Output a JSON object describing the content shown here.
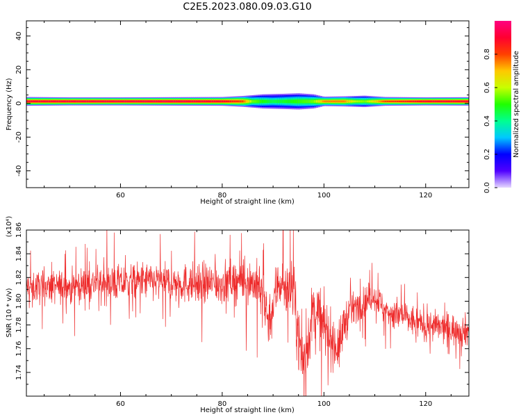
{
  "figure": {
    "title": "C2E5.2023.080.09.03.G10"
  },
  "chart_data": [
    {
      "type": "heatmap",
      "title": "C2E5.2023.080.09.03.G10",
      "xlabel": "Height of straight line (km)",
      "ylabel": "Frequency (Hz)",
      "xlim": [
        41.5,
        128.5
      ],
      "ylim": [
        -50,
        49
      ],
      "xticks": [
        60,
        80,
        100,
        120
      ],
      "yticks": [
        40,
        20,
        0,
        -20,
        -40
      ],
      "colorbar": {
        "label": "Normalized spectral amplitude",
        "range": [
          0.0,
          1.0
        ],
        "ticks": [
          0.0,
          0.2,
          0.4,
          0.6,
          0.8
        ],
        "colormap": [
          "#e6d8ff",
          "#5000ff",
          "#0000ff",
          "#00c8ff",
          "#00ff90",
          "#20ff00",
          "#c8ff00",
          "#ffc800",
          "#ff4000",
          "#ff0030",
          "#ff0080"
        ]
      },
      "band": {
        "center_hz": 1.2,
        "halfwidth_hz": [
          [
            41.5,
            2.6
          ],
          [
            50,
            2.4
          ],
          [
            60,
            2.4
          ],
          [
            70,
            2.5
          ],
          [
            80,
            2.6
          ],
          [
            84,
            3.2
          ],
          [
            88,
            4.2
          ],
          [
            92,
            4.5
          ],
          [
            95,
            4.8
          ],
          [
            98,
            4.2
          ],
          [
            100,
            2.8
          ],
          [
            104,
            3.0
          ],
          [
            108,
            3.4
          ],
          [
            112,
            2.6
          ],
          [
            120,
            2.4
          ],
          [
            128.5,
            2.5
          ]
        ],
        "core_amplitude": [
          [
            41.5,
            0.9
          ],
          [
            50,
            0.92
          ],
          [
            60,
            0.92
          ],
          [
            70,
            0.93
          ],
          [
            80,
            0.9
          ],
          [
            84,
            0.8
          ],
          [
            86,
            0.55
          ],
          [
            90,
            0.45
          ],
          [
            94,
            0.5
          ],
          [
            98,
            0.55
          ],
          [
            100,
            0.75
          ],
          [
            104,
            0.75
          ],
          [
            106,
            0.6
          ],
          [
            108,
            0.55
          ],
          [
            112,
            0.8
          ],
          [
            120,
            0.9
          ],
          [
            128.5,
            0.9
          ]
        ]
      }
    },
    {
      "type": "line",
      "xlabel": "Height of straight line (km)",
      "ylabel": "SNR (10 * v/v)",
      "y_multiplier": "(x10⁴)",
      "xlim": [
        41.5,
        128.5
      ],
      "ylim": [
        1.72,
        1.86
      ],
      "xticks": [
        60,
        80,
        100,
        120
      ],
      "yticks": [
        1.74,
        1.76,
        1.78,
        1.8,
        1.82,
        1.84,
        1.86
      ],
      "color": "#ee2b2b",
      "trend": [
        [
          41.5,
          1.812
        ],
        [
          50,
          1.812
        ],
        [
          55,
          1.815
        ],
        [
          60,
          1.815
        ],
        [
          65,
          1.817
        ],
        [
          70,
          1.815
        ],
        [
          75,
          1.815
        ],
        [
          80,
          1.815
        ],
        [
          83,
          1.818
        ],
        [
          86,
          1.816
        ],
        [
          88,
          1.808
        ],
        [
          89,
          1.785
        ],
        [
          90,
          1.795
        ],
        [
          91,
          1.818
        ],
        [
          92,
          1.814
        ],
        [
          94,
          1.808
        ],
        [
          95,
          1.77
        ],
        [
          96,
          1.745
        ],
        [
          97,
          1.77
        ],
        [
          98,
          1.795
        ],
        [
          99,
          1.79
        ],
        [
          100,
          1.778
        ],
        [
          101,
          1.772
        ],
        [
          102,
          1.765
        ],
        [
          103,
          1.76
        ],
        [
          104,
          1.783
        ],
        [
          106,
          1.795
        ],
        [
          108,
          1.8
        ],
        [
          110,
          1.805
        ],
        [
          112,
          1.792
        ],
        [
          115,
          1.788
        ],
        [
          118,
          1.782
        ],
        [
          120,
          1.78
        ],
        [
          124,
          1.777
        ],
        [
          128.5,
          1.775
        ]
      ],
      "noise_amplitude": [
        [
          41.5,
          0.015
        ],
        [
          85,
          0.02
        ],
        [
          88,
          0.025
        ],
        [
          96,
          0.03
        ],
        [
          103,
          0.024
        ],
        [
          106,
          0.014
        ],
        [
          112,
          0.015
        ],
        [
          128.5,
          0.015
        ]
      ],
      "samples": 1700
    }
  ]
}
